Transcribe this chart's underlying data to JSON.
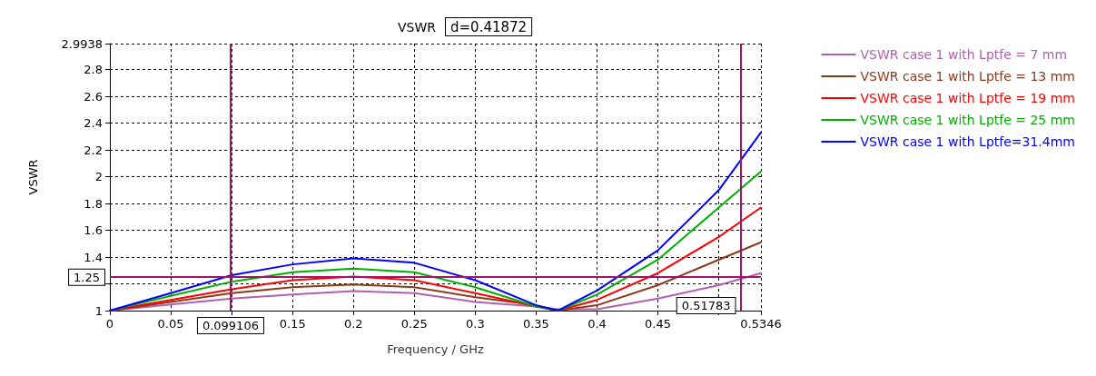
{
  "chart_data": {
    "type": "line",
    "title": "VSWR",
    "xlabel": "Frequency / GHz",
    "ylabel": "VSWR",
    "annotations": [
      "d=0.41872"
    ],
    "x": [
      0,
      0.05,
      0.1,
      0.15,
      0.2,
      0.25,
      0.3,
      0.35,
      0.368,
      0.4,
      0.45,
      0.5,
      0.5346
    ],
    "series": [
      {
        "name": "VSWR case 1 with Lptfe = 7 mm",
        "color": "#b060b0",
        "values": [
          1,
          1.045,
          1.09,
          1.12,
          1.145,
          1.13,
          1.065,
          1.03,
          1.01,
          1.01,
          1.09,
          1.19,
          1.28
        ]
      },
      {
        "name": "VSWR case 1 with Lptfe = 13 mm",
        "color": "#8b3a1a",
        "values": [
          1,
          1.065,
          1.13,
          1.175,
          1.195,
          1.175,
          1.1,
          1.04,
          1.0,
          1.04,
          1.19,
          1.38,
          1.51
        ]
      },
      {
        "name": "VSWR case 1 with Lptfe = 19 mm",
        "color": "#ff0000",
        "values": [
          1,
          1.08,
          1.16,
          1.227,
          1.255,
          1.227,
          1.13,
          1.03,
          1.0,
          1.08,
          1.28,
          1.55,
          1.77
        ]
      },
      {
        "name": "VSWR case 1 with Lptfe = 25 mm",
        "color": "#00b000",
        "values": [
          1,
          1.11,
          1.216,
          1.286,
          1.314,
          1.286,
          1.175,
          1.03,
          1.0,
          1.12,
          1.38,
          1.77,
          2.04
        ]
      },
      {
        "name": "VSWR case 1 with Lptfe=31.4mm",
        "color": "#0000ff",
        "values": [
          1,
          1.13,
          1.265,
          1.345,
          1.39,
          1.357,
          1.227,
          1.04,
          1.0,
          1.15,
          1.45,
          1.9,
          2.33
        ]
      }
    ],
    "xlim": [
      0,
      0.5346
    ],
    "xticks": [
      0,
      0.05,
      {
        "value": 0.1,
        "label": null
      },
      0.15,
      0.2,
      0.25,
      0.3,
      0.35,
      0.4,
      0.45,
      {
        "value": 0.5,
        "label": null
      },
      {
        "value": 0.5346,
        "label": "0.5346"
      }
    ],
    "ylim": [
      1,
      2.9938
    ],
    "yticks": [
      1,
      {
        "value": 1.2,
        "label": null
      },
      1.4,
      1.6,
      1.8,
      2,
      2.2,
      2.4,
      2.6,
      2.8,
      2.9938
    ],
    "ref_lines": [
      {
        "axis": "x",
        "value": 0.099106,
        "label": "0.099106",
        "color": "#a0146e"
      },
      {
        "axis": "x",
        "value": 0.51783,
        "label": "0.51783",
        "color": "#a0146e"
      },
      {
        "axis": "y",
        "value": 1.25,
        "label": "1.25",
        "color": "#a0146e"
      }
    ],
    "grid": true,
    "legend": "right",
    "marker": "none",
    "line_style": "solid"
  }
}
